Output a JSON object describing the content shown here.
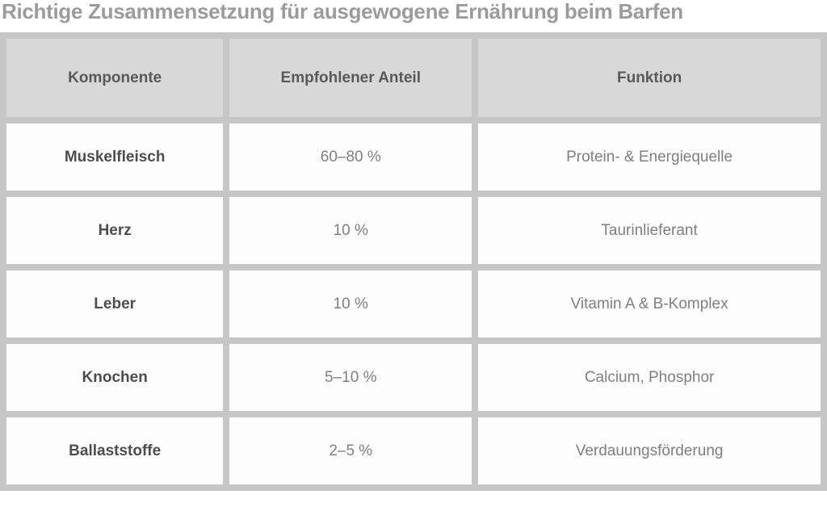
{
  "chart_data": {
    "type": "table",
    "title": "Richtige Zusammensetzung für ausgewogene Ernährung beim Barfen",
    "columns": [
      "Komponente",
      "Empfohlener Anteil",
      "Funktion"
    ],
    "rows": [
      [
        "Muskelfleisch",
        "60–80 %",
        "Protein- & Energiequelle"
      ],
      [
        "Herz",
        "10 %",
        "Taurinlieferant"
      ],
      [
        "Leber",
        "10 %",
        "Vitamin A & B-Komplex"
      ],
      [
        "Knochen",
        "5–10 %",
        "Calcium, Phosphor"
      ],
      [
        "Ballaststoffe",
        "2–5 %",
        "Verdauungsförderung"
      ]
    ]
  },
  "colors": {
    "page_bg": "#ffffff",
    "title_text": "#9b9b9b",
    "header_bg": "#d8d8d8",
    "header_text": "#58595b",
    "cell_bg": "#fdfdfd",
    "cell_text": "#7f7f7f",
    "cell_text_bold": "#4d4d4d",
    "border": "#c6c6c6"
  }
}
